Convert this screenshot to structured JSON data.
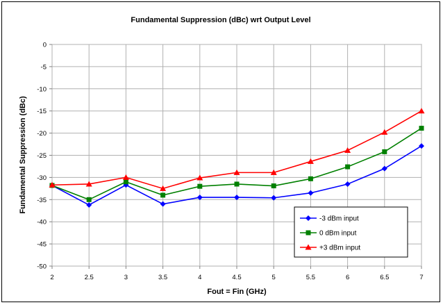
{
  "chart_data": {
    "type": "line",
    "title": "Fundamental Suppression (dBc) wrt Output Level",
    "xlabel": "Fout = Fin (GHz)",
    "ylabel": "Fundamental Suppression (dBc)",
    "x": [
      2,
      2.5,
      3,
      3.5,
      4,
      4.5,
      5,
      5.5,
      6,
      6.5,
      7
    ],
    "xlim": [
      2,
      7
    ],
    "ylim": [
      -50,
      0
    ],
    "x_ticks": [
      "2",
      "2.5",
      "3",
      "3.5",
      "4",
      "4.5",
      "5",
      "5.5",
      "6",
      "6.5",
      "7"
    ],
    "y_ticks": [
      "0",
      "-5",
      "-10",
      "-15",
      "-20",
      "-25",
      "-30",
      "-35",
      "-40",
      "-45",
      "-50"
    ],
    "grid": "horizontal major + vertical major",
    "legend_position": "bottom-right",
    "series": [
      {
        "name": "-3 dBm input",
        "color": "#0000FF",
        "marker": "diamond",
        "values": [
          -31.8,
          -36.2,
          -31.7,
          -36.0,
          -34.5,
          -34.5,
          -34.6,
          -33.5,
          -31.5,
          -28.0,
          -22.9
        ]
      },
      {
        "name": "0 dBm input",
        "color": "#008000",
        "marker": "square",
        "values": [
          -31.8,
          -35.0,
          -31.0,
          -34.0,
          -32.0,
          -31.5,
          -31.9,
          -30.3,
          -27.6,
          -24.2,
          -18.9
        ]
      },
      {
        "name": "+3 dBm input",
        "color": "#FF0000",
        "marker": "triangle",
        "values": [
          -31.7,
          -31.5,
          -30.0,
          -32.5,
          -30.1,
          -28.9,
          -28.9,
          -26.4,
          -23.9,
          -19.8,
          -15.0
        ]
      }
    ]
  }
}
